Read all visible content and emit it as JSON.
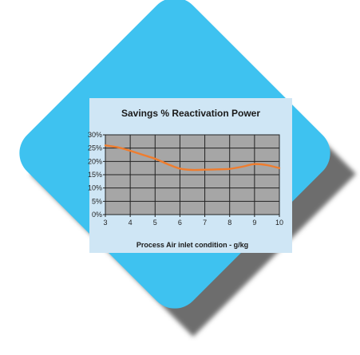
{
  "colors": {
    "diamond": "#3ec2f0",
    "diamond_shadow": "#6d6d6d",
    "panel": "#cfe6f5",
    "plot_bg": "#a6a6a6",
    "grid": "#222222",
    "line": "#ef7d2e"
  },
  "chart_data": {
    "type": "line",
    "title": "Savings % Reactivation Power",
    "xlabel": "Process Air inlet condition - g/kg",
    "ylabel": "",
    "x": [
      3,
      3.5,
      4,
      4.5,
      5,
      5.5,
      6,
      6.5,
      7,
      7.5,
      8,
      8.5,
      9,
      9.5,
      10
    ],
    "series": [
      {
        "values": [
          26,
          25.3,
          24,
          22.5,
          21,
          19,
          17.3,
          16.8,
          16.9,
          17,
          17.2,
          18,
          19,
          18.6,
          17.5
        ]
      }
    ],
    "xlim": [
      3,
      10
    ],
    "ylim": [
      0,
      30
    ],
    "xticks": [
      "3",
      "4",
      "5",
      "6",
      "7",
      "8",
      "9",
      "10"
    ],
    "yticks": [
      "0%",
      "5%",
      "10%",
      "15%",
      "20%",
      "25%",
      "30%"
    ],
    "grid": true
  }
}
